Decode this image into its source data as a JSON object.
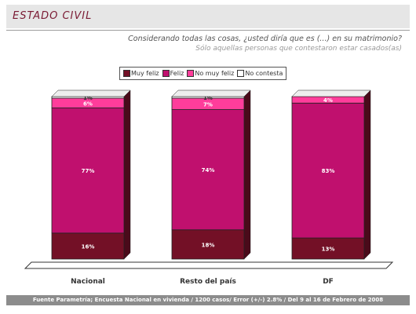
{
  "header": {
    "title": "ESTADO CIVIL"
  },
  "question": "Considerando todas las cosas, ¿usted diría que es (...) en su matrimonio?",
  "subquestion": "Sólo aquellas personas que contestaron estar casados(as)",
  "footer": "Fuente Parametría; Encuesta Nacional en vivienda / 1200 casos/ Error (+/-) 2.8% / Del 9 al 16 de Febrero de 2008",
  "colors": {
    "muy_feliz": "#731026",
    "feliz": "#c0106e",
    "no_muy_feliz": "#ff3d9b",
    "no_contesta": "#ffffff"
  },
  "chart_data": {
    "type": "bar",
    "stacked": true,
    "percent": true,
    "categories": [
      "Nacional",
      "Resto del país",
      "DF"
    ],
    "series": [
      {
        "name": "Muy feliz",
        "values": [
          16,
          18,
          13
        ],
        "labels": [
          "16%",
          "18%",
          "13%"
        ]
      },
      {
        "name": "Feliz",
        "values": [
          77,
          74,
          83
        ],
        "labels": [
          "77%",
          "74%",
          "83%"
        ]
      },
      {
        "name": "No muy feliz",
        "values": [
          6,
          7,
          4
        ],
        "labels": [
          "6%",
          "7%",
          "4%"
        ]
      },
      {
        "name": "No contesta",
        "values": [
          1,
          1,
          0
        ],
        "labels": [
          "1%",
          "1%",
          ""
        ]
      }
    ],
    "ylim": [
      0,
      100
    ],
    "legend_position": "top-left"
  }
}
